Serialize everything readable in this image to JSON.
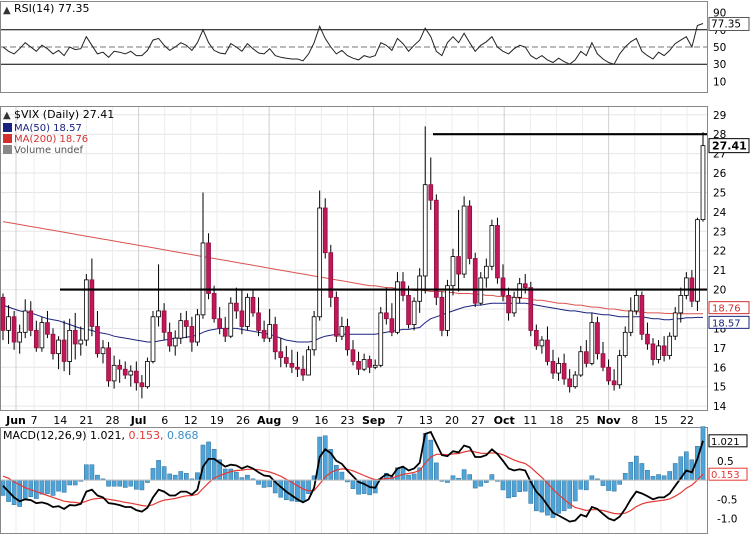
{
  "rsi": {
    "label": "RSI(14) 77.35",
    "value_tag": "77.35",
    "ticks": [
      90,
      70,
      50,
      30,
      10
    ],
    "ylim": [
      0,
      100
    ]
  },
  "price": {
    "title": "$VIX (Daily) 27.41",
    "legend": [
      {
        "text": "MA(50) 18.57",
        "color": "#1a237e"
      },
      {
        "text": "MA(200) 18.76",
        "color": "#d32f2f"
      },
      {
        "text": "Volume undef",
        "color": "#555555"
      }
    ],
    "last_tag": "27.41",
    "ma200_tag": "18.76",
    "ma50_tag": "18.57",
    "ticks": [
      29,
      28,
      27,
      26,
      25,
      24,
      23,
      22,
      21,
      20,
      19,
      18,
      17,
      16,
      15,
      14
    ],
    "ylim": [
      13.8,
      29.4
    ],
    "colors": {
      "up": "#ffffff",
      "down": "#c2185b",
      "ma50": "#1a237e",
      "ma200": "#d9534f",
      "line": "#000000"
    }
  },
  "x_axis": {
    "labels": [
      "Jun",
      "7",
      "14",
      "21",
      "28",
      "Jul",
      "6",
      "12",
      "19",
      "26",
      "Aug",
      "9",
      "16",
      "23",
      "Sep",
      "7",
      "13",
      "20",
      "27",
      "Oct",
      "11",
      "18",
      "25",
      "Nov",
      "8",
      "15",
      "22"
    ]
  },
  "macd": {
    "label": "MACD(12,26,9) 1.021, 0.153, 0.868",
    "label_main": "MACD(12,26,9) 1.021,",
    "label_signal": " 0.153,",
    "label_hist": " 0.868",
    "tags": [
      "1.021",
      "0.153"
    ],
    "ticks": [
      "0.5",
      "-0.5",
      "-1.0"
    ],
    "ylim": [
      -1.35,
      1.25
    ],
    "colors": {
      "macd": "#000000",
      "signal": "#e53935",
      "hist": "#4ea4d8"
    }
  },
  "chart_data": {
    "type": "candlestick",
    "symbol": "$VIX",
    "period": "Daily",
    "horizontal_lines": [
      20.0,
      28.0
    ],
    "candles": [
      [
        19.6,
        19.8,
        17.4,
        17.9
      ],
      [
        17.9,
        19.2,
        17.2,
        18.6
      ],
      [
        18.6,
        18.9,
        16.9,
        17.3
      ],
      [
        17.3,
        18.2,
        16.7,
        17.8
      ],
      [
        17.8,
        19.5,
        17.5,
        18.9
      ],
      [
        18.9,
        19.4,
        17.6,
        17.9
      ],
      [
        17.9,
        18.4,
        16.8,
        17.0
      ],
      [
        17.0,
        18.6,
        16.8,
        18.3
      ],
      [
        18.3,
        18.9,
        17.5,
        17.7
      ],
      [
        17.7,
        18.0,
        16.4,
        16.7
      ],
      [
        16.7,
        17.6,
        15.9,
        17.4
      ],
      [
        17.4,
        18.4,
        15.8,
        16.3
      ],
      [
        16.3,
        18.5,
        15.6,
        17.9
      ],
      [
        17.9,
        18.8,
        16.4,
        17.2
      ],
      [
        17.2,
        18.1,
        16.6,
        17.4
      ],
      [
        17.4,
        20.8,
        17.1,
        20.5
      ],
      [
        20.5,
        21.6,
        17.6,
        18.1
      ],
      [
        18.1,
        18.9,
        16.5,
        16.7
      ],
      [
        16.7,
        17.4,
        16.2,
        17.0
      ],
      [
        17.0,
        17.3,
        15.0,
        15.3
      ],
      [
        15.3,
        16.6,
        14.9,
        16.1
      ],
      [
        16.1,
        16.4,
        15.2,
        15.9
      ],
      [
        15.9,
        16.3,
        15.4,
        15.6
      ],
      [
        15.6,
        16.1,
        15.0,
        15.8
      ],
      [
        15.8,
        16.3,
        14.8,
        15.2
      ],
      [
        15.2,
        15.6,
        14.4,
        15.0
      ],
      [
        15.0,
        16.5,
        14.9,
        16.3
      ],
      [
        16.3,
        18.9,
        16.2,
        18.6
      ],
      [
        18.6,
        21.3,
        18.1,
        18.9
      ],
      [
        18.9,
        19.3,
        17.4,
        17.8
      ],
      [
        17.8,
        18.3,
        16.8,
        17.1
      ],
      [
        17.1,
        17.9,
        16.6,
        17.5
      ],
      [
        17.5,
        18.8,
        17.2,
        18.4
      ],
      [
        18.4,
        18.9,
        17.5,
        18.1
      ],
      [
        18.1,
        18.6,
        16.8,
        17.3
      ],
      [
        17.3,
        19.0,
        17.1,
        18.7
      ],
      [
        18.7,
        25.0,
        18.5,
        22.4
      ],
      [
        22.4,
        22.9,
        19.5,
        19.8
      ],
      [
        19.8,
        20.2,
        18.3,
        18.5
      ],
      [
        18.5,
        19.1,
        17.7,
        18.0
      ],
      [
        18.0,
        18.6,
        17.3,
        17.6
      ],
      [
        17.6,
        19.6,
        17.5,
        19.3
      ],
      [
        19.3,
        20.1,
        18.5,
        18.9
      ],
      [
        18.9,
        20.0,
        17.7,
        18.1
      ],
      [
        18.1,
        19.8,
        17.9,
        19.6
      ],
      [
        19.6,
        20.0,
        18.6,
        18.8
      ],
      [
        18.8,
        19.6,
        17.6,
        17.9
      ],
      [
        17.9,
        18.4,
        17.3,
        17.5
      ],
      [
        17.5,
        19.0,
        17.3,
        18.2
      ],
      [
        18.2,
        18.6,
        16.4,
        16.8
      ],
      [
        16.8,
        17.5,
        16.0,
        16.5
      ],
      [
        16.5,
        17.1,
        16.0,
        16.2
      ],
      [
        16.2,
        16.9,
        15.7,
        16.0
      ],
      [
        16.0,
        16.8,
        15.5,
        15.9
      ],
      [
        15.9,
        16.6,
        15.3,
        15.6
      ],
      [
        15.6,
        17.1,
        15.6,
        16.9
      ],
      [
        16.9,
        18.9,
        16.6,
        18.6
      ],
      [
        18.6,
        25.1,
        18.4,
        24.2
      ],
      [
        24.2,
        24.7,
        21.6,
        21.9
      ],
      [
        21.9,
        22.3,
        19.1,
        19.6
      ],
      [
        19.6,
        19.9,
        17.3,
        17.6
      ],
      [
        17.6,
        18.6,
        17.4,
        18.1
      ],
      [
        18.1,
        18.5,
        16.6,
        16.9
      ],
      [
        16.9,
        17.4,
        16.1,
        16.3
      ],
      [
        16.3,
        16.8,
        15.6,
        15.9
      ],
      [
        15.9,
        16.7,
        15.8,
        16.4
      ],
      [
        16.4,
        16.6,
        15.7,
        16.0
      ],
      [
        16.0,
        16.4,
        15.9,
        16.1
      ],
      [
        16.1,
        19.1,
        16.0,
        18.8
      ],
      [
        18.8,
        20.1,
        18.2,
        18.5
      ],
      [
        18.5,
        19.3,
        17.6,
        17.8
      ],
      [
        17.8,
        20.9,
        17.7,
        20.4
      ],
      [
        20.4,
        20.9,
        19.4,
        19.7
      ],
      [
        19.7,
        20.2,
        18.0,
        18.2
      ],
      [
        18.2,
        19.6,
        17.9,
        19.4
      ],
      [
        19.4,
        21.1,
        18.8,
        20.7
      ],
      [
        20.7,
        28.4,
        19.8,
        25.4
      ],
      [
        25.4,
        26.8,
        24.1,
        24.6
      ],
      [
        24.6,
        24.9,
        19.2,
        19.6
      ],
      [
        19.6,
        19.9,
        17.6,
        17.9
      ],
      [
        17.9,
        20.5,
        17.6,
        20.2
      ],
      [
        20.2,
        22.1,
        19.7,
        21.7
      ],
      [
        21.7,
        24.1,
        19.9,
        20.8
      ],
      [
        20.8,
        24.8,
        20.6,
        24.3
      ],
      [
        24.3,
        24.6,
        21.3,
        21.6
      ],
      [
        21.6,
        21.9,
        19.1,
        19.3
      ],
      [
        19.3,
        20.9,
        19.2,
        20.6
      ],
      [
        20.6,
        21.6,
        20.1,
        21.2
      ],
      [
        21.2,
        23.6,
        21.0,
        23.3
      ],
      [
        23.3,
        23.7,
        20.3,
        20.6
      ],
      [
        20.6,
        21.3,
        19.4,
        19.7
      ],
      [
        19.7,
        20.1,
        18.4,
        18.8
      ],
      [
        18.8,
        19.9,
        18.6,
        19.6
      ],
      [
        19.6,
        20.6,
        19.3,
        20.3
      ],
      [
        20.3,
        20.8,
        19.8,
        20.1
      ],
      [
        20.1,
        20.4,
        17.6,
        17.9
      ],
      [
        17.9,
        18.2,
        16.9,
        17.1
      ],
      [
        17.1,
        17.6,
        16.7,
        17.4
      ],
      [
        17.4,
        18.1,
        16.1,
        16.3
      ],
      [
        16.3,
        16.9,
        15.4,
        15.7
      ],
      [
        15.7,
        16.5,
        15.3,
        16.2
      ],
      [
        16.2,
        16.7,
        15.1,
        15.4
      ],
      [
        15.4,
        15.9,
        14.7,
        15.0
      ],
      [
        15.0,
        15.8,
        14.9,
        15.6
      ],
      [
        15.6,
        17.1,
        15.5,
        16.8
      ],
      [
        16.8,
        17.4,
        16.0,
        16.2
      ],
      [
        16.2,
        18.8,
        16.1,
        18.3
      ],
      [
        18.3,
        18.6,
        16.4,
        16.7
      ],
      [
        16.7,
        17.3,
        15.8,
        16.0
      ],
      [
        16.0,
        16.4,
        15.1,
        15.3
      ],
      [
        15.3,
        15.9,
        14.8,
        15.1
      ],
      [
        15.1,
        16.9,
        14.9,
        16.6
      ],
      [
        16.6,
        18.1,
        16.5,
        17.8
      ],
      [
        17.8,
        19.6,
        17.6,
        18.9
      ],
      [
        18.9,
        20.0,
        18.7,
        19.7
      ],
      [
        19.7,
        19.9,
        17.4,
        17.7
      ],
      [
        17.7,
        18.3,
        16.9,
        17.2
      ],
      [
        17.2,
        17.5,
        16.1,
        16.4
      ],
      [
        16.4,
        17.4,
        16.2,
        17.1
      ],
      [
        17.1,
        17.6,
        16.3,
        16.6
      ],
      [
        16.6,
        17.8,
        16.4,
        17.6
      ],
      [
        17.6,
        19.1,
        17.4,
        18.8
      ],
      [
        18.8,
        20.1,
        18.3,
        19.7
      ],
      [
        19.7,
        20.9,
        19.5,
        20.6
      ],
      [
        20.6,
        21.0,
        19.1,
        19.4
      ],
      [
        19.4,
        23.7,
        18.9,
        23.6
      ],
      [
        23.6,
        28.1,
        23.5,
        27.41
      ]
    ],
    "ma50": [
      19.2,
      19.1,
      19.0,
      18.9,
      18.85,
      18.8,
      18.7,
      18.6,
      18.5,
      18.45,
      18.4,
      18.3,
      18.2,
      18.1,
      18.0,
      17.95,
      17.9,
      17.8,
      17.75,
      17.7,
      17.6,
      17.55,
      17.5,
      17.45,
      17.4,
      17.35,
      17.3,
      17.3,
      17.35,
      17.4,
      17.45,
      17.5,
      17.5,
      17.55,
      17.6,
      17.65,
      17.8,
      17.9,
      17.95,
      18.0,
      18.0,
      18.0,
      18.0,
      17.95,
      17.9,
      17.85,
      17.8,
      17.75,
      17.7,
      17.6,
      17.5,
      17.4,
      17.35,
      17.3,
      17.3,
      17.3,
      17.35,
      17.5,
      17.6,
      17.65,
      17.7,
      17.7,
      17.7,
      17.7,
      17.7,
      17.7,
      17.7,
      17.7,
      17.75,
      17.8,
      17.85,
      17.9,
      17.95,
      17.95,
      18.0,
      18.05,
      18.3,
      18.5,
      18.6,
      18.7,
      18.8,
      18.9,
      19.0,
      19.1,
      19.15,
      19.2,
      19.2,
      19.25,
      19.3,
      19.3,
      19.3,
      19.3,
      19.3,
      19.3,
      19.3,
      19.25,
      19.2,
      19.15,
      19.1,
      19.05,
      19.0,
      18.95,
      18.9,
      18.9,
      18.85,
      18.8,
      18.8,
      18.75,
      18.7,
      18.7,
      18.65,
      18.6,
      18.6,
      18.6,
      18.6,
      18.6,
      18.55,
      18.5,
      18.5,
      18.45,
      18.45,
      18.5,
      18.5,
      18.55,
      18.55,
      18.57,
      18.57
    ],
    "ma200": [
      23.5,
      23.45,
      23.4,
      23.35,
      23.3,
      23.25,
      23.2,
      23.15,
      23.1,
      23.05,
      23.0,
      22.95,
      22.9,
      22.85,
      22.8,
      22.75,
      22.7,
      22.65,
      22.6,
      22.55,
      22.5,
      22.45,
      22.4,
      22.35,
      22.3,
      22.25,
      22.2,
      22.15,
      22.1,
      22.05,
      22.0,
      21.95,
      21.9,
      21.85,
      21.8,
      21.75,
      21.7,
      21.65,
      21.6,
      21.55,
      21.5,
      21.45,
      21.4,
      21.35,
      21.3,
      21.25,
      21.2,
      21.15,
      21.1,
      21.05,
      21.0,
      20.95,
      20.9,
      20.85,
      20.8,
      20.75,
      20.7,
      20.65,
      20.6,
      20.55,
      20.5,
      20.45,
      20.4,
      20.35,
      20.3,
      20.25,
      20.2,
      20.2,
      20.15,
      20.1,
      20.1,
      20.05,
      20.0,
      20.0,
      19.95,
      19.95,
      19.95,
      19.9,
      19.9,
      19.9,
      19.85,
      19.85,
      19.8,
      19.8,
      19.8,
      19.75,
      19.75,
      19.7,
      19.7,
      19.65,
      19.65,
      19.6,
      19.6,
      19.55,
      19.55,
      19.5,
      19.45,
      19.45,
      19.4,
      19.35,
      19.3,
      19.3,
      19.25,
      19.2,
      19.2,
      19.15,
      19.1,
      19.1,
      19.05,
      19.0,
      19.0,
      18.95,
      18.9,
      18.9,
      18.85,
      18.85,
      18.8,
      18.8,
      18.8,
      18.78,
      18.77,
      18.76,
      18.76,
      18.76,
      18.76,
      18.76,
      18.76
    ],
    "rsi": [
      50,
      45,
      42,
      48,
      55,
      50,
      45,
      52,
      48,
      42,
      46,
      40,
      50,
      47,
      48,
      62,
      52,
      42,
      44,
      38,
      45,
      44,
      42,
      45,
      40,
      40,
      46,
      58,
      60,
      52,
      46,
      50,
      55,
      52,
      46,
      55,
      70,
      55,
      46,
      43,
      42,
      54,
      50,
      45,
      54,
      48,
      43,
      42,
      48,
      40,
      38,
      37,
      36,
      36,
      34,
      42,
      55,
      74,
      60,
      50,
      42,
      46,
      40,
      37,
      35,
      40,
      38,
      40,
      55,
      52,
      46,
      60,
      54,
      45,
      52,
      58,
      72,
      62,
      45,
      40,
      55,
      62,
      55,
      66,
      55,
      45,
      52,
      56,
      62,
      50,
      45,
      42,
      48,
      52,
      50,
      40,
      36,
      40,
      35,
      32,
      37,
      33,
      30,
      35,
      45,
      40,
      55,
      42,
      36,
      32,
      30,
      42,
      50,
      56,
      60,
      45,
      40,
      36,
      44,
      40,
      46,
      54,
      58,
      62,
      50,
      75,
      77.35
    ],
    "macd": [
      -0.15,
      -0.3,
      -0.45,
      -0.55,
      -0.5,
      -0.52,
      -0.6,
      -0.58,
      -0.62,
      -0.7,
      -0.68,
      -0.75,
      -0.65,
      -0.66,
      -0.62,
      -0.3,
      -0.25,
      -0.4,
      -0.45,
      -0.6,
      -0.62,
      -0.65,
      -0.7,
      -0.7,
      -0.78,
      -0.82,
      -0.72,
      -0.45,
      -0.25,
      -0.3,
      -0.4,
      -0.4,
      -0.3,
      -0.3,
      -0.38,
      -0.25,
      0.35,
      0.55,
      0.55,
      0.45,
      0.35,
      0.4,
      0.38,
      0.3,
      0.36,
      0.3,
      0.2,
      0.12,
      0.1,
      -0.05,
      -0.18,
      -0.3,
      -0.4,
      -0.5,
      -0.58,
      -0.5,
      -0.2,
      0.6,
      0.8,
      0.7,
      0.5,
      0.42,
      0.25,
      0.1,
      -0.05,
      -0.1,
      -0.18,
      -0.2,
      0.05,
      0.15,
      0.1,
      0.3,
      0.35,
      0.25,
      0.3,
      0.45,
      1.2,
      1.25,
      0.95,
      0.65,
      0.62,
      0.75,
      0.72,
      0.9,
      0.85,
      0.6,
      0.6,
      0.65,
      0.8,
      0.68,
      0.5,
      0.3,
      0.25,
      0.28,
      0.25,
      -0.05,
      -0.3,
      -0.45,
      -0.65,
      -0.85,
      -0.92,
      -1.0,
      -1.08,
      -1.05,
      -0.9,
      -0.95,
      -0.7,
      -0.75,
      -0.88,
      -1.0,
      -1.05,
      -0.95,
      -0.75,
      -0.5,
      -0.3,
      -0.35,
      -0.42,
      -0.5,
      -0.45,
      -0.45,
      -0.35,
      -0.15,
      0.05,
      0.25,
      0.2,
      0.55,
      1.021
    ],
    "signal": [
      0.1,
      0.05,
      -0.05,
      -0.12,
      -0.2,
      -0.25,
      -0.3,
      -0.35,
      -0.4,
      -0.45,
      -0.5,
      -0.55,
      -0.57,
      -0.58,
      -0.6,
      -0.55,
      -0.5,
      -0.48,
      -0.47,
      -0.5,
      -0.52,
      -0.55,
      -0.58,
      -0.6,
      -0.63,
      -0.66,
      -0.68,
      -0.64,
      -0.57,
      -0.52,
      -0.5,
      -0.48,
      -0.44,
      -0.41,
      -0.4,
      -0.37,
      -0.22,
      -0.07,
      0.05,
      0.12,
      0.17,
      0.22,
      0.25,
      0.26,
      0.28,
      0.28,
      0.27,
      0.24,
      0.21,
      0.16,
      0.1,
      0.02,
      -0.06,
      -0.15,
      -0.23,
      -0.28,
      -0.27,
      -0.1,
      0.08,
      0.2,
      0.26,
      0.29,
      0.28,
      0.24,
      0.18,
      0.12,
      0.06,
      0.01,
      0.02,
      0.04,
      0.05,
      0.1,
      0.15,
      0.17,
      0.2,
      0.25,
      0.44,
      0.6,
      0.67,
      0.67,
      0.66,
      0.68,
      0.69,
      0.73,
      0.76,
      0.73,
      0.7,
      0.69,
      0.71,
      0.7,
      0.66,
      0.59,
      0.52,
      0.47,
      0.43,
      0.33,
      0.2,
      0.07,
      -0.08,
      -0.24,
      -0.38,
      -0.5,
      -0.62,
      -0.71,
      -0.75,
      -0.79,
      -0.77,
      -0.77,
      -0.79,
      -0.83,
      -0.87,
      -0.88,
      -0.86,
      -0.79,
      -0.69,
      -0.62,
      -0.58,
      -0.56,
      -0.54,
      -0.52,
      -0.49,
      -0.42,
      -0.33,
      -0.21,
      -0.13,
      0.0,
      0.153
    ]
  }
}
